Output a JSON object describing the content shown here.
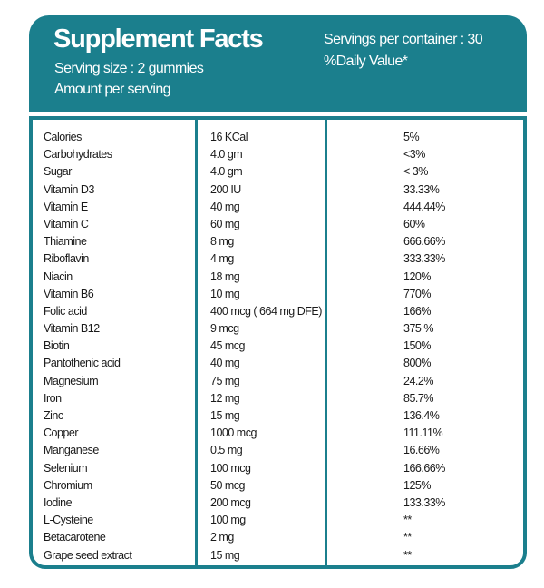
{
  "header": {
    "title": "Supplement Facts",
    "serving_size": "Serving size : 2 gummies",
    "amount_per_serving": "Amount per serving",
    "servings_per_container": "Servings per container : 30",
    "daily_value": "%Daily Value*"
  },
  "colors": {
    "accent": "#1b7f8d"
  },
  "rows": [
    {
      "name": "Calories",
      "amount": "16 KCal",
      "dv": "5%"
    },
    {
      "name": "Carbohydrates",
      "amount": "4.0 gm",
      "dv": "<3%"
    },
    {
      "name": "Sugar",
      "amount": "4.0 gm",
      "dv": "< 3%"
    },
    {
      "name": "Vitamin D3",
      "amount": "200 IU",
      "dv": "33.33%"
    },
    {
      "name": "Vitamin E",
      "amount": "40 mg",
      "dv": "444.44%"
    },
    {
      "name": "Vitamin C",
      "amount": "60 mg",
      "dv": "60%"
    },
    {
      "name": "Thiamine",
      "amount": "8 mg",
      "dv": "666.66%"
    },
    {
      "name": "Riboflavin",
      "amount": "4 mg",
      "dv": "333.33%"
    },
    {
      "name": "Niacin",
      "amount": "18 mg",
      "dv": "120%"
    },
    {
      "name": "Vitamin B6",
      "amount": "10 mg",
      "dv": "770%"
    },
    {
      "name": "Folic acid",
      "amount": "400 mcg ( 664 mg DFE)",
      "dv": "166%"
    },
    {
      "name": "Vitamin B12",
      "amount": "9 mcg",
      "dv": "375 %"
    },
    {
      "name": "Biotin",
      "amount": "45 mcg",
      "dv": "150%"
    },
    {
      "name": "Pantothenic acid",
      "amount": "40 mg",
      "dv": "800%"
    },
    {
      "name": "Magnesium",
      "amount": "75 mg",
      "dv": "24.2%"
    },
    {
      "name": "Iron",
      "amount": "12 mg",
      "dv": "85.7%"
    },
    {
      "name": "Zinc",
      "amount": "15 mg",
      "dv": "136.4%"
    },
    {
      "name": "Copper",
      "amount": "1000 mcg",
      "dv": "111.11%"
    },
    {
      "name": "Manganese",
      "amount": "0.5 mg",
      "dv": "16.66%"
    },
    {
      "name": "Selenium",
      "amount": "100 mcg",
      "dv": "166.66%"
    },
    {
      "name": "Chromium",
      "amount": "50 mcg",
      "dv": "125%"
    },
    {
      "name": "Iodine",
      "amount": "200 mcg",
      "dv": "133.33%"
    },
    {
      "name": "L-Cysteine",
      "amount": "100 mg",
      "dv": "**"
    },
    {
      "name": "Betacarotene",
      "amount": "2 mg",
      "dv": "**"
    },
    {
      "name": "Grape seed extract",
      "amount": "15 mg",
      "dv": "**"
    }
  ]
}
